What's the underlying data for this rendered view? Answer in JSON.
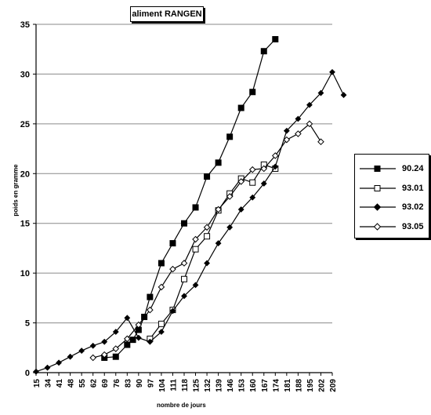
{
  "chart_data": {
    "type": "line",
    "title": "aliment RANGEN",
    "xlabel": "nombre de jours",
    "ylabel": "poids en gramme",
    "categories": [
      "15",
      "34",
      "41",
      "48",
      "55",
      "62",
      "69",
      "76",
      "83",
      "90",
      "97",
      "104",
      "111",
      "118",
      "125",
      "132",
      "139",
      "146",
      "153",
      "160",
      "167",
      "174",
      "181",
      "188",
      "195",
      "202",
      "209"
    ],
    "ylim": [
      0,
      35
    ],
    "yticks": [
      0,
      5,
      10,
      15,
      20,
      25,
      30,
      35
    ],
    "grid": "horizontal",
    "legend_position": "right",
    "series": [
      {
        "name": "90.24",
        "marker": "filled-square",
        "points": [
          {
            "x": 6.0,
            "y": 1.5
          },
          {
            "x": 7.0,
            "y": 1.6
          },
          {
            "x": 8.0,
            "y": 2.8
          },
          {
            "x": 8.5,
            "y": 3.3
          },
          {
            "x": 9.0,
            "y": 4.3
          },
          {
            "x": 9.5,
            "y": 5.6
          },
          {
            "x": 10.0,
            "y": 7.6
          },
          {
            "x": 11.0,
            "y": 11.0
          },
          {
            "x": 12.0,
            "y": 13.0
          },
          {
            "x": 13.0,
            "y": 15.0
          },
          {
            "x": 14.0,
            "y": 16.6
          },
          {
            "x": 15.0,
            "y": 19.7
          },
          {
            "x": 16.0,
            "y": 21.1
          },
          {
            "x": 17.0,
            "y": 23.7
          },
          {
            "x": 18.0,
            "y": 26.6
          },
          {
            "x": 19.0,
            "y": 28.2
          },
          {
            "x": 20.0,
            "y": 32.3
          },
          {
            "x": 21.0,
            "y": 33.5
          }
        ]
      },
      {
        "name": "93.01",
        "marker": "open-square",
        "points": [
          {
            "x": 10.0,
            "y": 3.4
          },
          {
            "x": 11.0,
            "y": 4.9
          },
          {
            "x": 12.0,
            "y": 6.3
          },
          {
            "x": 13.0,
            "y": 9.4
          },
          {
            "x": 14.0,
            "y": 12.4
          },
          {
            "x": 15.0,
            "y": 13.7
          },
          {
            "x": 16.0,
            "y": 16.3
          },
          {
            "x": 17.0,
            "y": 18.0
          },
          {
            "x": 18.0,
            "y": 19.5
          },
          {
            "x": 19.0,
            "y": 19.1
          },
          {
            "x": 20.0,
            "y": 20.9
          },
          {
            "x": 21.0,
            "y": 20.5
          }
        ]
      },
      {
        "name": "93.02",
        "marker": "filled-diamond",
        "points": [
          {
            "x": 0.0,
            "y": 0.1
          },
          {
            "x": 1.0,
            "y": 0.5
          },
          {
            "x": 2.0,
            "y": 1.0
          },
          {
            "x": 3.0,
            "y": 1.6
          },
          {
            "x": 4.0,
            "y": 2.2
          },
          {
            "x": 5.0,
            "y": 2.7
          },
          {
            "x": 6.0,
            "y": 3.1
          },
          {
            "x": 7.0,
            "y": 4.1
          },
          {
            "x": 8.0,
            "y": 5.5
          },
          {
            "x": 9.0,
            "y": 3.5
          },
          {
            "x": 10.0,
            "y": 3.1
          },
          {
            "x": 11.0,
            "y": 4.1
          },
          {
            "x": 12.0,
            "y": 6.2
          },
          {
            "x": 13.0,
            "y": 7.7
          },
          {
            "x": 14.0,
            "y": 8.8
          },
          {
            "x": 15.0,
            "y": 11.0
          },
          {
            "x": 16.0,
            "y": 13.0
          },
          {
            "x": 17.0,
            "y": 14.6
          },
          {
            "x": 18.0,
            "y": 16.4
          },
          {
            "x": 19.0,
            "y": 17.6
          },
          {
            "x": 20.0,
            "y": 19.0
          },
          {
            "x": 21.0,
            "y": 20.7
          },
          {
            "x": 22.0,
            "y": 24.3
          },
          {
            "x": 23.0,
            "y": 25.5
          },
          {
            "x": 24.0,
            "y": 26.9
          },
          {
            "x": 25.0,
            "y": 28.1
          },
          {
            "x": 26.0,
            "y": 30.2
          },
          {
            "x": 27.0,
            "y": 27.9
          }
        ]
      },
      {
        "name": "93.05",
        "marker": "open-diamond",
        "points": [
          {
            "x": 5.0,
            "y": 1.5
          },
          {
            "x": 6.0,
            "y": 1.8
          },
          {
            "x": 7.0,
            "y": 2.4
          },
          {
            "x": 8.0,
            "y": 3.4
          },
          {
            "x": 9.0,
            "y": 4.8
          },
          {
            "x": 10.0,
            "y": 6.3
          },
          {
            "x": 11.0,
            "y": 8.6
          },
          {
            "x": 12.0,
            "y": 10.4
          },
          {
            "x": 13.0,
            "y": 11.0
          },
          {
            "x": 14.0,
            "y": 13.4
          },
          {
            "x": 15.0,
            "y": 14.6
          },
          {
            "x": 16.0,
            "y": 16.4
          },
          {
            "x": 17.0,
            "y": 17.7
          },
          {
            "x": 18.0,
            "y": 19.2
          },
          {
            "x": 19.0,
            "y": 20.4
          },
          {
            "x": 20.0,
            "y": 20.5
          },
          {
            "x": 21.0,
            "y": 21.8
          },
          {
            "x": 22.0,
            "y": 23.4
          },
          {
            "x": 23.0,
            "y": 24.0
          },
          {
            "x": 24.0,
            "y": 25.0
          },
          {
            "x": 25.0,
            "y": 23.2
          }
        ]
      }
    ]
  }
}
